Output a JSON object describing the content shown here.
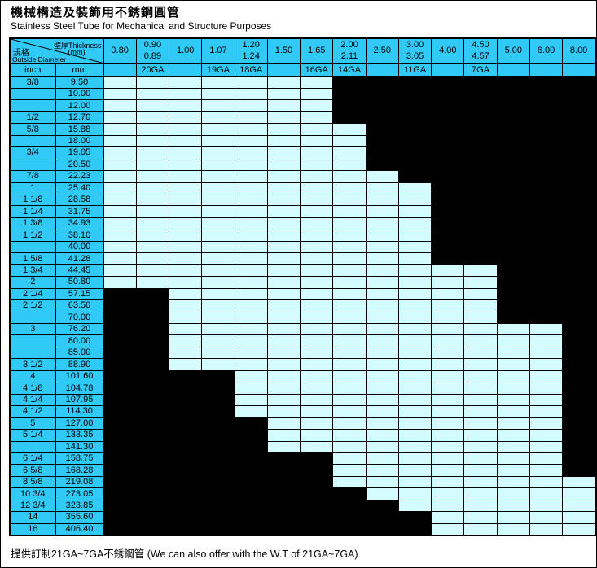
{
  "page": {
    "title": "機械構造及裝飾用不銹鋼圓管",
    "subtitle": "Stainless Steel Tube for Mechanical and Structure Purposes",
    "footnote": "提供訂制21GA~7GA不銹鋼管 (We can also offer with the W.T of 21GA~7GA)"
  },
  "colors": {
    "header_blue": "#31C9F5",
    "available_cyan": "#D4FBFE",
    "unavailable_black": "#000000"
  },
  "table": {
    "corner": {
      "thickness_label": "壁厚Thickness",
      "thickness_unit": "(mm)",
      "size_label": "規格",
      "size_sublabel": "Outside Diameter"
    },
    "unit_headers": {
      "inch": "inch",
      "mm": "mm"
    },
    "thickness_columns": [
      {
        "values": [
          "0.80"
        ],
        "gauge": ""
      },
      {
        "values": [
          "0.90",
          "0.89"
        ],
        "gauge": "20GA"
      },
      {
        "values": [
          "1.00"
        ],
        "gauge": ""
      },
      {
        "values": [
          "1.07"
        ],
        "gauge": "19GA"
      },
      {
        "values": [
          "1.20",
          "1.24"
        ],
        "gauge": "18GA"
      },
      {
        "values": [
          "1.50"
        ],
        "gauge": ""
      },
      {
        "values": [
          "1.65"
        ],
        "gauge": "16GA"
      },
      {
        "values": [
          "2.00",
          "2.11"
        ],
        "gauge": "14GA"
      },
      {
        "values": [
          "2.50"
        ],
        "gauge": ""
      },
      {
        "values": [
          "3.00",
          "3.05"
        ],
        "gauge": "11GA"
      },
      {
        "values": [
          "4.00"
        ],
        "gauge": ""
      },
      {
        "values": [
          "4.50",
          "4.57"
        ],
        "gauge": "7GA"
      },
      {
        "values": [
          "5.00"
        ],
        "gauge": ""
      },
      {
        "values": [
          "6.00"
        ],
        "gauge": ""
      },
      {
        "values": [
          "8.00"
        ],
        "gauge": ""
      }
    ],
    "rows": [
      {
        "inch": "3/8",
        "mm": "9.50",
        "available_from": 1,
        "available_to": 7
      },
      {
        "inch": "",
        "mm": "10.00",
        "available_from": 1,
        "available_to": 7
      },
      {
        "inch": "",
        "mm": "12.00",
        "available_from": 1,
        "available_to": 7
      },
      {
        "inch": "1/2",
        "mm": "12.70",
        "available_from": 1,
        "available_to": 7
      },
      {
        "inch": "5/8",
        "mm": "15.88",
        "available_from": 1,
        "available_to": 8
      },
      {
        "inch": "",
        "mm": "18.00",
        "available_from": 1,
        "available_to": 8
      },
      {
        "inch": "3/4",
        "mm": "19.05",
        "available_from": 1,
        "available_to": 8
      },
      {
        "inch": "",
        "mm": "20.50",
        "available_from": 1,
        "available_to": 8
      },
      {
        "inch": "7/8",
        "mm": "22.23",
        "available_from": 1,
        "available_to": 9
      },
      {
        "inch": "1",
        "mm": "25.40",
        "available_from": 1,
        "available_to": 10
      },
      {
        "inch": "1 1/8",
        "mm": "28.58",
        "available_from": 1,
        "available_to": 10
      },
      {
        "inch": "1 1/4",
        "mm": "31.75",
        "available_from": 1,
        "available_to": 10
      },
      {
        "inch": "1 3/8",
        "mm": "34.93",
        "available_from": 1,
        "available_to": 10
      },
      {
        "inch": "1 1/2",
        "mm": "38.10",
        "available_from": 1,
        "available_to": 10
      },
      {
        "inch": "",
        "mm": "40.00",
        "available_from": 1,
        "available_to": 10
      },
      {
        "inch": "1 5/8",
        "mm": "41.28",
        "available_from": 1,
        "available_to": 10
      },
      {
        "inch": "1 3/4",
        "mm": "44.45",
        "available_from": 1,
        "available_to": 12
      },
      {
        "inch": "2",
        "mm": "50.80",
        "available_from": 1,
        "available_to": 12
      },
      {
        "inch": "2 1/4",
        "mm": "57.15",
        "available_from": 3,
        "available_to": 12
      },
      {
        "inch": "2 1/2",
        "mm": "63.50",
        "available_from": 3,
        "available_to": 12
      },
      {
        "inch": "",
        "mm": "70.00",
        "available_from": 3,
        "available_to": 12
      },
      {
        "inch": "3",
        "mm": "76.20",
        "available_from": 3,
        "available_to": 14
      },
      {
        "inch": "",
        "mm": "80.00",
        "available_from": 3,
        "available_to": 14
      },
      {
        "inch": "",
        "mm": "85.00",
        "available_from": 3,
        "available_to": 14
      },
      {
        "inch": "3 1/2",
        "mm": "88.90",
        "available_from": 3,
        "available_to": 14
      },
      {
        "inch": "4",
        "mm": "101.60",
        "available_from": 5,
        "available_to": 14
      },
      {
        "inch": "4 1/8",
        "mm": "104.78",
        "available_from": 5,
        "available_to": 14
      },
      {
        "inch": "4 1/4",
        "mm": "107.95",
        "available_from": 5,
        "available_to": 14
      },
      {
        "inch": "4 1/2",
        "mm": "114.30",
        "available_from": 5,
        "available_to": 14
      },
      {
        "inch": "5",
        "mm": "127.00",
        "available_from": 6,
        "available_to": 14
      },
      {
        "inch": "5 1/4",
        "mm": "133.35",
        "available_from": 6,
        "available_to": 14
      },
      {
        "inch": "",
        "mm": "141.30",
        "available_from": 6,
        "available_to": 14
      },
      {
        "inch": "6 1/4",
        "mm": "158.75",
        "available_from": 8,
        "available_to": 14
      },
      {
        "inch": "6 5/8",
        "mm": "168.28",
        "available_from": 8,
        "available_to": 14
      },
      {
        "inch": "8 5/8",
        "mm": "219.08",
        "available_from": 8,
        "available_to": 15
      },
      {
        "inch": "10 3/4",
        "mm": "273.05",
        "available_from": 9,
        "available_to": 15
      },
      {
        "inch": "12 3/4",
        "mm": "323.85",
        "available_from": 10,
        "available_to": 15
      },
      {
        "inch": "14",
        "mm": "355.60",
        "available_from": 11,
        "available_to": 15
      },
      {
        "inch": "16",
        "mm": "406.40",
        "available_from": 11,
        "available_to": 15
      }
    ]
  }
}
